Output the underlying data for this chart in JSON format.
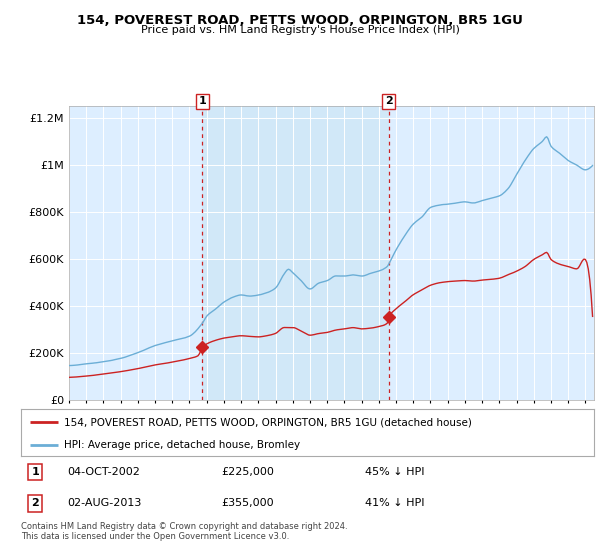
{
  "title": "154, POVEREST ROAD, PETTS WOOD, ORPINGTON, BR5 1GU",
  "subtitle": "Price paid vs. HM Land Registry's House Price Index (HPI)",
  "hpi_color": "#6baed6",
  "price_color": "#cc2222",
  "bg_color": "#ddeeff",
  "shade_color": "#d0e8f8",
  "ylim": [
    0,
    1250000
  ],
  "yticks": [
    0,
    200000,
    400000,
    600000,
    800000,
    1000000,
    1200000
  ],
  "ytick_labels": [
    "£0",
    "£200K",
    "£400K",
    "£600K",
    "£800K",
    "£1M",
    "£1.2M"
  ],
  "legend_line1": "154, POVEREST ROAD, PETTS WOOD, ORPINGTON, BR5 1GU (detached house)",
  "legend_line2": "HPI: Average price, detached house, Bromley",
  "annotation1_label": "1",
  "annotation1_date": "04-OCT-2002",
  "annotation1_price": "£225,000",
  "annotation1_hpi": "45% ↓ HPI",
  "annotation2_label": "2",
  "annotation2_date": "02-AUG-2013",
  "annotation2_price": "£355,000",
  "annotation2_hpi": "41% ↓ HPI",
  "footer": "Contains HM Land Registry data © Crown copyright and database right 2024.\nThis data is licensed under the Open Government Licence v3.0.",
  "sale1_year": 2002.75,
  "sale1_price": 225000,
  "sale2_year": 2013.58,
  "sale2_price": 355000,
  "xmin": 1995.0,
  "xmax": 2025.5
}
